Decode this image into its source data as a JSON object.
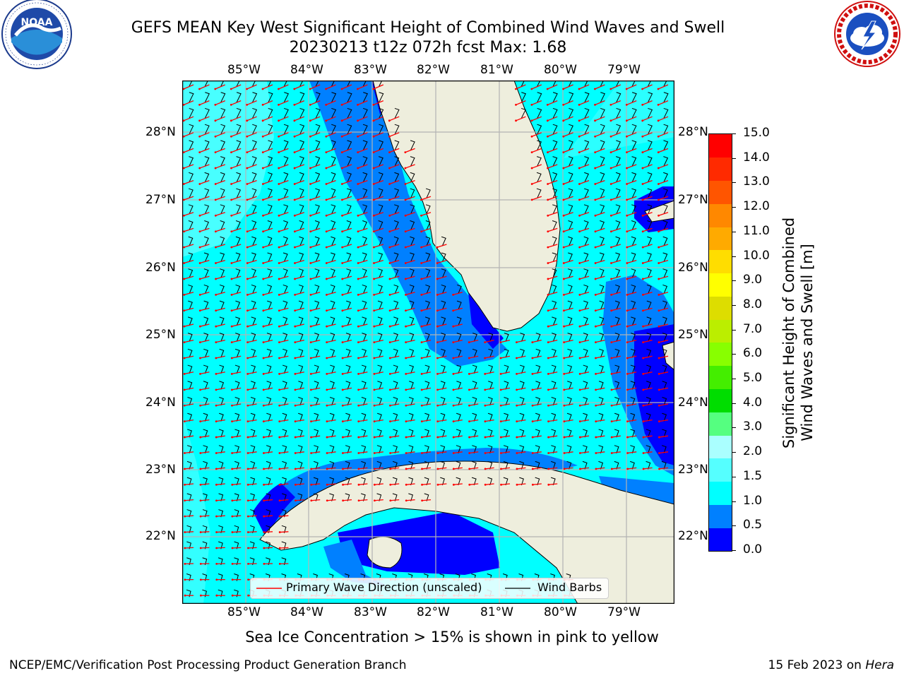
{
  "title": {
    "line1": "GEFS MEAN Key West Significant Height of Combined Wind Waves and Swell",
    "line2": "20230213 t12z 072h fcst   Max: 1.68"
  },
  "logos": {
    "noaa": {
      "text": "NOAA",
      "ring_text": "NATIONAL OCEANIC AND ATMOSPHERIC ADMINISTRATION · U.S. DEPARTMENT OF COMMERCE"
    },
    "nws": {
      "ring_text": "NATIONAL WEATHER SERVICE"
    }
  },
  "map": {
    "lon_labels": [
      "85°W",
      "84°W",
      "83°W",
      "82°W",
      "81°W",
      "80°W",
      "79°W"
    ],
    "lat_labels": [
      "28°N",
      "27°N",
      "26°N",
      "25°N",
      "24°N",
      "23°N",
      "22°N"
    ],
    "legend": {
      "wave_label": "Primary Wave Direction (unscaled)",
      "wind_label": "Wind Barbs"
    },
    "colors": {
      "ocean": "#00ffff",
      "shallow": "#0080ff",
      "coast": "#0000ff",
      "land": "#eeeedd",
      "wave_arrow": "#ff0000",
      "barb": "#000000",
      "grid": "#b3b3b3"
    }
  },
  "colorbar": {
    "label_line1": "Significant Height of Combined",
    "label_line2": "Wind Waves and Swell [m]",
    "ticks": [
      "0.0",
      "0.5",
      "1.0",
      "1.5",
      "2.0",
      "3.0",
      "4.0",
      "5.0",
      "6.0",
      "7.0",
      "8.0",
      "9.0",
      "10.0",
      "11.0",
      "12.0",
      "13.0",
      "14.0",
      "15.0"
    ],
    "colors": [
      "#0000ff",
      "#0080ff",
      "#00ffff",
      "#55ffff",
      "#aaffff",
      "#55ff80",
      "#00dd00",
      "#44ee00",
      "#88ff00",
      "#bbee00",
      "#dddd00",
      "#ffff00",
      "#ffdd00",
      "#ffaa00",
      "#ff8800",
      "#ff5500",
      "#ff2a00",
      "#ff0000"
    ]
  },
  "note": "Sea Ice Concentration > 15% is shown in pink to yellow",
  "footer": {
    "left": "NCEP/EMC/Verification Post Processing Product Generation Branch",
    "date": "15 Feb 2023 on ",
    "host": "Hera"
  }
}
